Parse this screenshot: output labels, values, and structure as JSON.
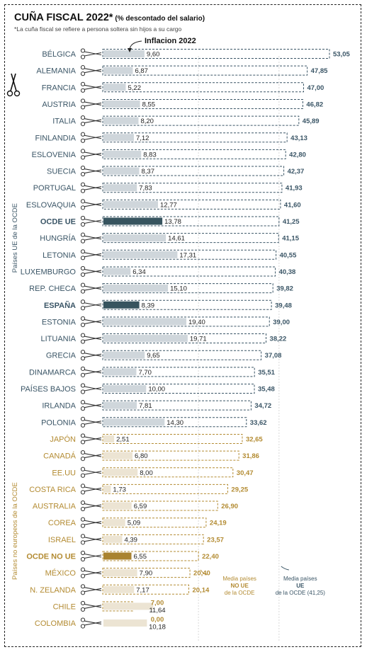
{
  "title": "CUÑA FISCAL 2022*",
  "subtitle": "(% descontado del salario)",
  "footnote": "*La cuña fiscal se refiere a persona soltera sin hijos a su cargo",
  "inflation_label": "Inflacion 2022",
  "group_labels": {
    "eu": "Países UE de la OCDE",
    "non_eu": "Países no europeos de la OCDE"
  },
  "ref_notes": {
    "non_eu": [
      "Media países",
      "NO UE",
      "de la OCDE"
    ],
    "eu": [
      "Media países",
      "UE",
      "de la OCDE (41,25)"
    ]
  },
  "colors": {
    "eu_text": "#3a5566",
    "non_eu_text": "#b38b32",
    "eu_bar": "#cfd6db",
    "eu_highlight_bar": "#37545f",
    "non_eu_bar": "#ece4d3",
    "non_eu_highlight_bar": "#a98330"
  },
  "chart_data": {
    "type": "bar",
    "title": "CUÑA FISCAL 2022*",
    "subtitle": "(% descontado del salario)",
    "series": [
      {
        "name": "Cuña fiscal",
        "values": [
          53.05,
          47.85,
          47.0,
          46.82,
          45.89,
          43.13,
          42.8,
          42.37,
          41.93,
          41.6,
          41.25,
          41.15,
          40.55,
          40.38,
          39.82,
          39.48,
          39.0,
          38.22,
          37.08,
          35.51,
          35.48,
          34.72,
          33.62,
          32.65,
          31.86,
          30.47,
          29.25,
          26.9,
          24.19,
          23.57,
          22.4,
          20.4,
          20.14,
          7.0,
          0.0
        ]
      },
      {
        "name": "Inflacion 2022",
        "values": [
          9.6,
          6.87,
          5.22,
          8.55,
          8.2,
          7.12,
          8.83,
          8.37,
          7.83,
          12.77,
          13.78,
          14.61,
          17.31,
          6.34,
          15.1,
          8.39,
          19.4,
          19.71,
          9.65,
          7.7,
          10.0,
          7.81,
          14.3,
          2.51,
          6.8,
          8.0,
          1.73,
          6.59,
          5.09,
          4.39,
          6.55,
          7.9,
          7.17,
          11.64,
          10.18
        ]
      }
    ],
    "rows": [
      {
        "country": "BÉLGICA",
        "wedge": "53,05",
        "inflation": "9,60",
        "group": "eu",
        "highlight": false
      },
      {
        "country": "ALEMANIA",
        "wedge": "47,85",
        "inflation": "6,87",
        "group": "eu",
        "highlight": false
      },
      {
        "country": "FRANCIA",
        "wedge": "47,00",
        "inflation": "5,22",
        "group": "eu",
        "highlight": false
      },
      {
        "country": "AUSTRIA",
        "wedge": "46,82",
        "inflation": "8,55",
        "group": "eu",
        "highlight": false
      },
      {
        "country": "ITALIA",
        "wedge": "45,89",
        "inflation": "8,20",
        "group": "eu",
        "highlight": false
      },
      {
        "country": "FINLANDIA",
        "wedge": "43,13",
        "inflation": "7,12",
        "group": "eu",
        "highlight": false
      },
      {
        "country": "ESLOVENIA",
        "wedge": "42,80",
        "inflation": "8,83",
        "group": "eu",
        "highlight": false
      },
      {
        "country": "SUECIA",
        "wedge": "42,37",
        "inflation": "8,37",
        "group": "eu",
        "highlight": false
      },
      {
        "country": "PORTUGAL",
        "wedge": "41,93",
        "inflation": "7,83",
        "group": "eu",
        "highlight": false
      },
      {
        "country": "ESLOVAQUIA",
        "wedge": "41,60",
        "inflation": "12,77",
        "group": "eu",
        "highlight": false
      },
      {
        "country": "OCDE UE",
        "wedge": "41,25",
        "inflation": "13,78",
        "group": "eu",
        "highlight": true
      },
      {
        "country": "HUNGRÍA",
        "wedge": "41,15",
        "inflation": "14,61",
        "group": "eu",
        "highlight": false
      },
      {
        "country": "LETONIA",
        "wedge": "40,55",
        "inflation": "17,31",
        "group": "eu",
        "highlight": false
      },
      {
        "country": "LUXEMBURGO",
        "wedge": "40,38",
        "inflation": "6,34",
        "group": "eu",
        "highlight": false
      },
      {
        "country": "REP. CHECA",
        "wedge": "39,82",
        "inflation": "15,10",
        "group": "eu",
        "highlight": false
      },
      {
        "country": "ESPAÑA",
        "wedge": "39,48",
        "inflation": "8,39",
        "group": "eu",
        "highlight": true
      },
      {
        "country": "ESTONIA",
        "wedge": "39,00",
        "inflation": "19,40",
        "group": "eu",
        "highlight": false
      },
      {
        "country": "LITUANIA",
        "wedge": "38,22",
        "inflation": "19,71",
        "group": "eu",
        "highlight": false
      },
      {
        "country": "GRECIA",
        "wedge": "37,08",
        "inflation": "9,65",
        "group": "eu",
        "highlight": false
      },
      {
        "country": "DINAMARCA",
        "wedge": "35,51",
        "inflation": "7,70",
        "group": "eu",
        "highlight": false
      },
      {
        "country": "PAÍSES BAJOS",
        "wedge": "35,48",
        "inflation": "10,00",
        "group": "eu",
        "highlight": false
      },
      {
        "country": "IRLANDA",
        "wedge": "34,72",
        "inflation": "7,81",
        "group": "eu",
        "highlight": false
      },
      {
        "country": "POLONIA",
        "wedge": "33,62",
        "inflation": "14,30",
        "group": "eu",
        "highlight": false
      },
      {
        "country": "JAPÓN",
        "wedge": "32,65",
        "inflation": "2,51",
        "group": "non_eu",
        "highlight": false
      },
      {
        "country": "CANADÁ",
        "wedge": "31,86",
        "inflation": "6,80",
        "group": "non_eu",
        "highlight": false
      },
      {
        "country": "EE.UU",
        "wedge": "30,47",
        "inflation": "8,00",
        "group": "non_eu",
        "highlight": false
      },
      {
        "country": "COSTA RICA",
        "wedge": "29,25",
        "inflation": "1,73",
        "group": "non_eu",
        "highlight": false
      },
      {
        "country": "AUSTRALIA",
        "wedge": "26,90",
        "inflation": "6,59",
        "group": "non_eu",
        "highlight": false
      },
      {
        "country": "COREA",
        "wedge": "24,19",
        "inflation": "5,09",
        "group": "non_eu",
        "highlight": false
      },
      {
        "country": "ISRAEL",
        "wedge": "23,57",
        "inflation": "4,39",
        "group": "non_eu",
        "highlight": false
      },
      {
        "country": "OCDE NO UE",
        "wedge": "22,40",
        "inflation": "6,55",
        "group": "non_eu",
        "highlight": true
      },
      {
        "country": "MÉXICO",
        "wedge": "20,40",
        "inflation": "7,90",
        "group": "non_eu",
        "highlight": false
      },
      {
        "country": "N. ZELANDA",
        "wedge": "20,14",
        "inflation": "7,17",
        "group": "non_eu",
        "highlight": false
      },
      {
        "country": "CHILE",
        "wedge": "7,00",
        "inflation": "11,64",
        "group": "non_eu",
        "highlight": false
      },
      {
        "country": "COLOMBIA",
        "wedge": "0,00",
        "inflation": "10,18",
        "group": "non_eu",
        "highlight": false
      }
    ],
    "reference_lines": [
      {
        "label": "Media países NO UE de la OCDE",
        "value": 22.4
      },
      {
        "label": "Media países UE de la OCDE",
        "value": 41.25
      }
    ],
    "xlim": [
      0,
      53.05
    ]
  }
}
